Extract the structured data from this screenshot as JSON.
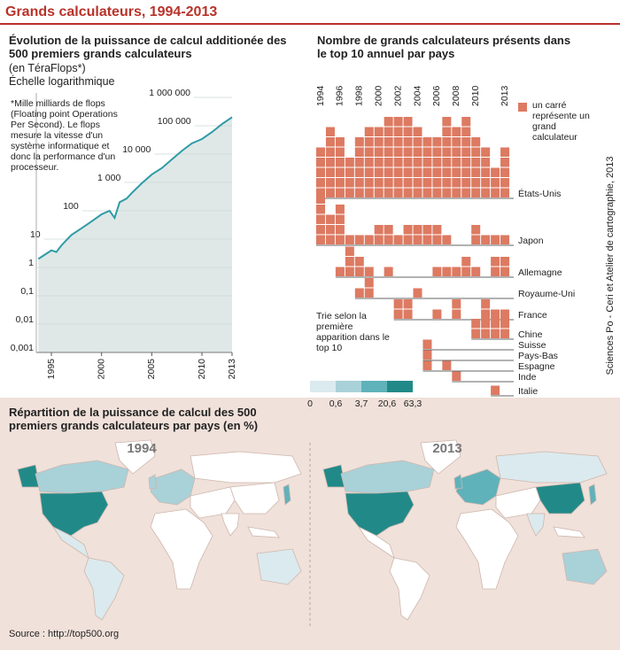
{
  "title": "Grands calculateurs, 1994-2013",
  "source": "Source : http://top500.org",
  "credit": "Sciences Po - Ceri et Atelier de cartographie, 2013",
  "chart_data": [
    {
      "type": "line",
      "title": "Évolution de la puissance de calcul additionée des 500 premiers grands calculateurs",
      "subtitle": "(en TéraFlops*)",
      "scale_note": "Échelle logarithmique",
      "footnote": "*Mille milliards de flops (Floating point Operations Per Second). Le flops mesure la vitesse d'un système informatique et donc la performance d'un processeur.",
      "log_scale": true,
      "color": "#2f9ba6",
      "x": [
        1993.7,
        1995,
        1995.5,
        1996,
        1997,
        1998,
        1999,
        2000,
        2000.8,
        2001.3,
        2001.8,
        2002.5,
        2003,
        2004,
        2005,
        2006,
        2007,
        2008,
        2009,
        2010,
        2011,
        2012,
        2013
      ],
      "values": [
        2,
        4,
        3.5,
        6,
        14,
        24,
        42,
        75,
        100,
        56,
        200,
        270,
        420,
        930,
        1900,
        3200,
        6500,
        13000,
        24000,
        34000,
        60000,
        115000,
        200000
      ],
      "xlim": [
        1993.5,
        2013
      ],
      "xticks": [
        1995,
        2000,
        2005,
        2010,
        2013
      ],
      "ylim": [
        0.001,
        1000000
      ],
      "yticks": [
        {
          "value": 1000000,
          "label": "1 000 000"
        },
        {
          "value": 100000,
          "label": "100 000"
        },
        {
          "value": 10000,
          "label": "10 000"
        },
        {
          "value": 1000,
          "label": "1 000"
        },
        100,
        10,
        1,
        {
          "value": 0.1,
          "label": "0,1"
        },
        {
          "value": 0.01,
          "label": "0,01"
        },
        {
          "value": 0.001,
          "label": "0,001"
        }
      ]
    },
    {
      "type": "waffle",
      "title": "Nombre de grands calculateurs présents dans le top 10 annuel par pays",
      "legend": "un carré représente un grand calculateur",
      "note": "Trie selon la première apparition dans le top 10",
      "color": "#dd7a62",
      "categories": [
        1994,
        null,
        1996,
        null,
        1998,
        null,
        2000,
        null,
        2002,
        null,
        2004,
        null,
        2006,
        null,
        2008,
        null,
        2010,
        null,
        null,
        2013
      ],
      "series": [
        {
          "name": "États-Unis",
          "values": [
            5,
            7,
            6,
            4,
            6,
            7,
            7,
            8,
            8,
            8,
            7,
            6,
            6,
            8,
            7,
            8,
            6,
            5,
            3,
            5
          ]
        },
        {
          "name": "Japon",
          "values": [
            5,
            3,
            4,
            1,
            1,
            1,
            2,
            2,
            1,
            2,
            2,
            2,
            2,
            1,
            0,
            0,
            2,
            1,
            1,
            1
          ]
        },
        {
          "name": "Allemagne",
          "values": [
            0,
            0,
            1,
            3,
            2,
            1,
            0,
            1,
            0,
            0,
            0,
            0,
            1,
            1,
            1,
            2,
            1,
            0,
            2,
            2
          ]
        },
        {
          "name": "Royaume-Uni",
          "values": [
            0,
            0,
            0,
            0,
            1,
            2,
            0,
            0,
            0,
            0,
            1,
            0,
            0,
            0,
            0,
            0,
            0,
            0,
            0,
            0
          ]
        },
        {
          "name": "France",
          "values": [
            0,
            0,
            0,
            0,
            0,
            0,
            0,
            0,
            2,
            2,
            0,
            0,
            1,
            0,
            2,
            0,
            0,
            2,
            1,
            1
          ]
        },
        {
          "name": "Chine",
          "values": [
            0,
            0,
            0,
            0,
            0,
            0,
            0,
            0,
            0,
            0,
            0,
            0,
            0,
            0,
            0,
            0,
            2,
            2,
            2,
            2
          ]
        },
        {
          "name": "Suisse",
          "values": [
            0,
            0,
            0,
            0,
            0,
            0,
            0,
            0,
            0,
            0,
            0,
            1,
            0,
            0,
            0,
            0,
            0,
            0,
            0,
            0
          ]
        },
        {
          "name": "Pays-Bas",
          "values": [
            0,
            0,
            0,
            0,
            0,
            0,
            0,
            0,
            0,
            0,
            0,
            1,
            0,
            0,
            0,
            0,
            0,
            0,
            0,
            0
          ]
        },
        {
          "name": "Espagne",
          "values": [
            0,
            0,
            0,
            0,
            0,
            0,
            0,
            0,
            0,
            0,
            0,
            1,
            0,
            1,
            0,
            0,
            0,
            0,
            0,
            0
          ]
        },
        {
          "name": "Inde",
          "values": [
            0,
            0,
            0,
            0,
            0,
            0,
            0,
            0,
            0,
            0,
            0,
            0,
            0,
            0,
            1,
            0,
            0,
            0,
            0,
            0
          ]
        },
        {
          "name": "Italie",
          "values": [
            0,
            0,
            0,
            0,
            0,
            0,
            0,
            0,
            0,
            0,
            0,
            0,
            0,
            0,
            0,
            0,
            0,
            0,
            1,
            0
          ]
        }
      ]
    },
    {
      "type": "map",
      "title": "Répartition de la puissance de calcul des 500 premiers grands calculateurs par pays (en %)",
      "panels": [
        "1994",
        "2013"
      ],
      "breaks": [
        0,
        {
          "value": 0.6,
          "label": "0,6"
        },
        {
          "value": 3.7,
          "label": "3,7"
        },
        {
          "value": 20.6,
          "label": "20,6"
        },
        {
          "value": 63.3,
          "label": "63,3"
        }
      ],
      "colors": [
        "#dbeaee",
        "#a9d1d8",
        "#5fb2ba",
        "#218a89"
      ]
    }
  ]
}
